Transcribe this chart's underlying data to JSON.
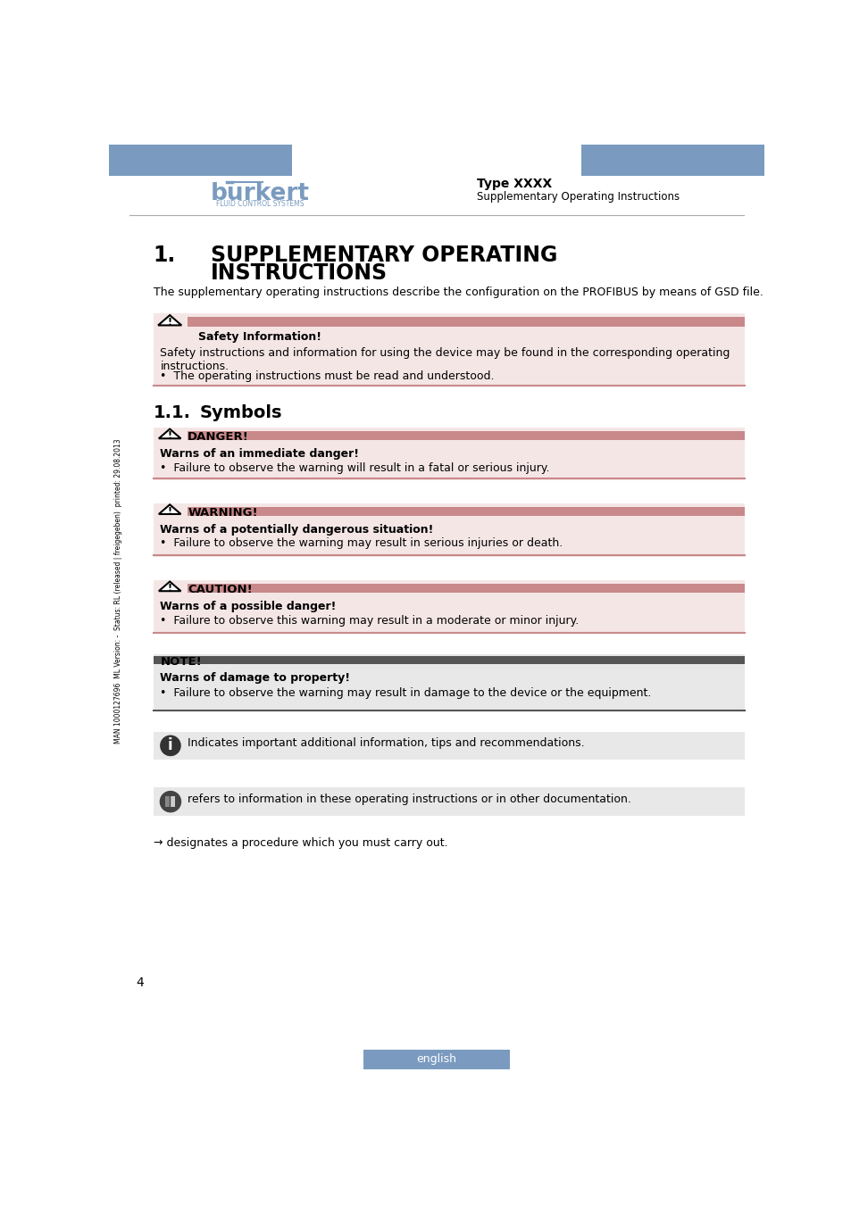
{
  "bg_color": "#ffffff",
  "header_blue": "#7a9bbf",
  "type_label": "Type XXXX",
  "subtitle_label": "Supplementary Operating Instructions",
  "intro_text": "The supplementary operating instructions describe the configuration on the PROFIBUS by means of GSD file.",
  "safety_box_bg": "#f5e6e6",
  "safety_box_bar": "#c9898a",
  "safety_title": "Safety Information!",
  "safety_body": "Safety instructions and information for using the device may be found in the corresponding operating\ninstructions.",
  "safety_bullet": "•  The operating instructions must be read and understood.",
  "danger_title": "DANGER!",
  "danger_bar_color": "#c9898a",
  "danger_box_bg": "#f5e6e6",
  "danger_bold": "Warns of an immediate danger!",
  "danger_body": "•  Failure to observe the warning will result in a fatal or serious injury.",
  "warning_title": "WARNING!",
  "warning_bar_color": "#c9898a",
  "warning_box_bg": "#f5e6e6",
  "warning_bold": "Warns of a potentially dangerous situation!",
  "warning_body": "•  Failure to observe the warning may result in serious injuries or death.",
  "caution_title": "CAUTION!",
  "caution_bar_color": "#c9898a",
  "caution_box_bg": "#f5e6e6",
  "caution_bold": "Warns of a possible danger!",
  "caution_body": "•  Failure to observe this warning may result in a moderate or minor injury.",
  "note_title": "NOTE!",
  "note_bar_color": "#555555",
  "note_box_bg": "#e8e8e8",
  "note_bold": "Warns of damage to property!",
  "note_body": "•  Failure to observe the warning may result in damage to the device or the equipment.",
  "info_box_bg": "#e8e8e8",
  "info_text": "Indicates important additional information, tips and recommendations.",
  "ref_box_bg": "#e8e8e8",
  "ref_text": "refers to information in these operating instructions or in other documentation.",
  "arrow_text": "→ designates a procedure which you must carry out.",
  "page_number": "4",
  "footer_text": "english",
  "footer_bg": "#7a9bbf",
  "sidebar_text": "MAN 1000127696  ML Version: -  Status: RL (released | freigegeben)  printed: 29.08.2013",
  "burkert_color": "#7a9bbf"
}
